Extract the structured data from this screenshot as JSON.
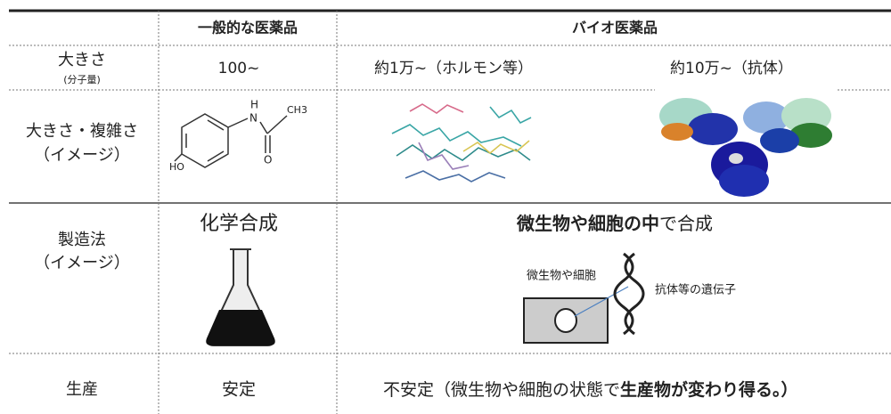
{
  "header": {
    "general": "一般的な医薬品",
    "bio": "バイオ医薬品"
  },
  "rows": [
    {
      "label": "大きさ",
      "sublabel": "(分子量)",
      "general": "100~",
      "bio": [
        "約1万~（ホルモン等）",
        "約10万~（抗体）"
      ]
    },
    {
      "label": "大きさ・複雑さ",
      "sublabel": "（イメージ）",
      "structure_labels": [
        "HO",
        "H",
        "N",
        "O",
        "CH3"
      ]
    },
    {
      "label": "製造法",
      "sublabel": "（イメージ）",
      "general": "化学合成",
      "bio_heading": [
        "微生物や細胞の中",
        "で合成"
      ],
      "diagram_labels": [
        "微生物や細胞",
        "抗体等の遺伝子"
      ]
    },
    {
      "label": "生産",
      "general": "安定",
      "bio": [
        "不安定（微生物や細胞の状態で",
        "生産物が変わり得る。）"
      ]
    }
  ]
}
